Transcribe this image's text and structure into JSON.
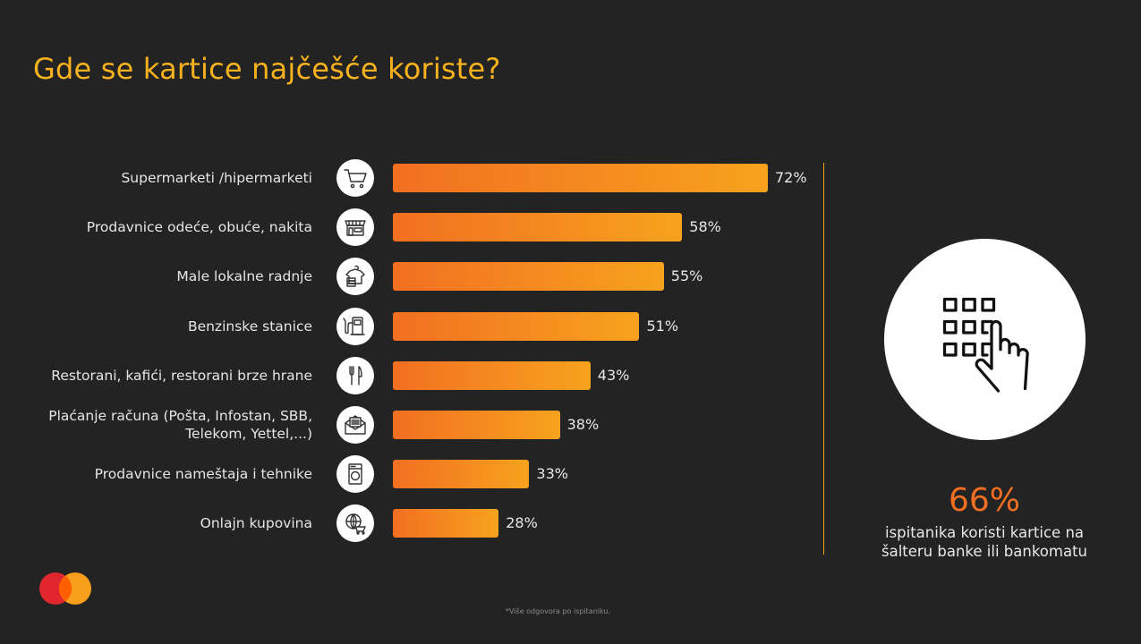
{
  "title": "Gde se kartice najčešće koriste?",
  "chart_data": {
    "type": "bar",
    "orientation": "horizontal",
    "title": "Gde se kartice najčešće koriste?",
    "categories": [
      "Supermarketi /hipermarketi",
      "Prodavnice odeće, obuće, nakita",
      "Male lokalne radnje",
      "Benzinske stanice",
      "Restorani, kafići, restorani brze hrane",
      "Plaćanje računa (Pošta, Infostan, SBB, Telekom, Yettel,...)",
      "Prodavnice nameštaja i tehnike",
      "Onlajn kupovina"
    ],
    "label_lines": [
      [
        "Supermarketi /hipermarketi"
      ],
      [
        "Prodavnice odeće, obuće, nakita"
      ],
      [
        "Male lokalne radnje"
      ],
      [
        "Benzinske stanice"
      ],
      [
        "Restorani, kafići, restorani brze hrane"
      ],
      [
        "Plaćanje računa (Pošta, Infostan, SBB,",
        "Telekom, Yettel,...)"
      ],
      [
        "Prodavnice nameštaja i tehnike"
      ],
      [
        "Onlajn kupovina"
      ]
    ],
    "values": [
      72,
      58,
      55,
      51,
      43,
      38,
      33,
      28
    ],
    "value_labels": [
      "72%",
      "58%",
      "55%",
      "51%",
      "43%",
      "38%",
      "33%",
      "28%"
    ],
    "icons": [
      "shopping-cart-icon",
      "storefront-icon",
      "clothing-stack-icon",
      "fuel-pump-icon",
      "fork-knife-icon",
      "envelope-bill-icon",
      "washing-machine-icon",
      "globe-cart-icon"
    ],
    "unit": "%",
    "xlabel": "",
    "ylabel": "",
    "grid": false,
    "bar_gradient": [
      "#f26f21",
      "#f7a21e"
    ]
  },
  "side_stat": {
    "value": "66%",
    "text_line1": "ispitanika koristi kartice na",
    "text_line2": "šalteru banke ili bankomatu",
    "icon": "keypad-hand-icon"
  },
  "footnote": "*Više odgovora po ispitaniku.",
  "colors": {
    "background": "#232323",
    "title": "#f7b21d",
    "accent": "#f26f21",
    "logo_red": "#eb001b",
    "logo_orange": "#f79e1b"
  }
}
